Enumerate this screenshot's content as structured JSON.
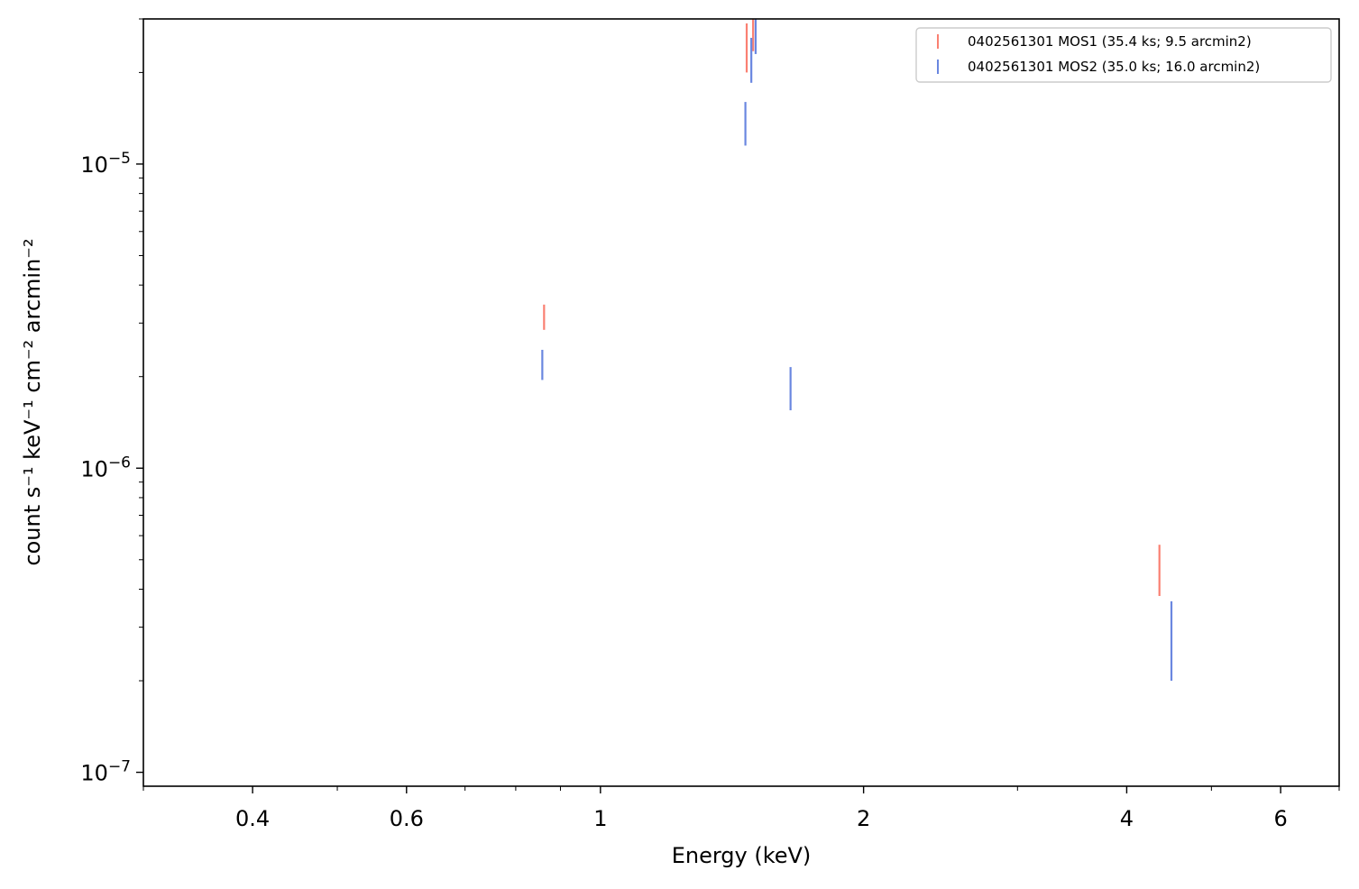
{
  "chart_data": {
    "type": "scatter",
    "title": "",
    "xlabel": "Energy (keV)",
    "ylabel": "count s⁻¹ keV⁻¹ cm⁻² arcmin⁻²",
    "xscale": "log",
    "yscale": "log",
    "xlim": [
      0.3,
      7.0
    ],
    "ylim": [
      9e-08,
      3e-05
    ],
    "xticks_major": [
      {
        "value": 0.4,
        "label": "0.4"
      },
      {
        "value": 0.6,
        "label": "0.6"
      },
      {
        "value": 1,
        "label": "1"
      },
      {
        "value": 2,
        "label": "2"
      },
      {
        "value": 4,
        "label": "4"
      },
      {
        "value": 6,
        "label": "6"
      }
    ],
    "xticks_minor": [
      0.3,
      0.5,
      0.7,
      0.8,
      0.9,
      3,
      5,
      7
    ],
    "yticks_major": [
      {
        "value": 1e-07,
        "base": "10",
        "exp": "−7"
      },
      {
        "value": 1e-06,
        "base": "10",
        "exp": "−6"
      },
      {
        "value": 1e-05,
        "base": "10",
        "exp": "−5"
      }
    ],
    "yticks_minor": [
      2e-07,
      3e-07,
      4e-07,
      5e-07,
      6e-07,
      7e-07,
      8e-07,
      9e-07,
      2e-06,
      3e-06,
      4e-06,
      5e-06,
      6e-06,
      7e-06,
      8e-06,
      9e-06,
      2e-05,
      3e-05
    ],
    "legend_position": "upper-right",
    "series": [
      {
        "name": "0402561301 MOS1 (35.4 ks; 9.5 arcmin2)",
        "color": "#fa8072",
        "marker": "vertical error bar",
        "points": [
          {
            "x": 0.862,
            "y": 3.1e-06,
            "ylow": 2.85e-06,
            "yhigh": 3.45e-06
          },
          {
            "x": 1.47,
            "y": 2.4e-05,
            "ylow": 2e-05,
            "yhigh": 2.9e-05
          },
          {
            "x": 1.495,
            "y": 2.7e-05,
            "ylow": 2.35e-05,
            "yhigh": 3e-05
          },
          {
            "x": 4.36,
            "y": 4.6e-07,
            "ylow": 3.8e-07,
            "yhigh": 5.6e-07
          }
        ]
      },
      {
        "name": "0402561301 MOS2 (35.0 ks; 16.0 arcmin2)",
        "color": "#6a87e0",
        "marker": "vertical error bar",
        "points": [
          {
            "x": 0.858,
            "y": 2.2e-06,
            "ylow": 1.95e-06,
            "yhigh": 2.45e-06
          },
          {
            "x": 1.465,
            "y": 1.35e-05,
            "ylow": 1.15e-05,
            "yhigh": 1.6e-05
          },
          {
            "x": 1.488,
            "y": 2.2e-05,
            "ylow": 1.85e-05,
            "yhigh": 2.6e-05
          },
          {
            "x": 1.505,
            "y": 2.6e-05,
            "ylow": 2.3e-05,
            "yhigh": 3e-05
          },
          {
            "x": 1.65,
            "y": 1.85e-06,
            "ylow": 1.55e-06,
            "yhigh": 2.15e-06
          },
          {
            "x": 4.5,
            "y": 2.8e-07,
            "ylow": 2e-07,
            "yhigh": 3.65e-07
          }
        ]
      }
    ]
  }
}
